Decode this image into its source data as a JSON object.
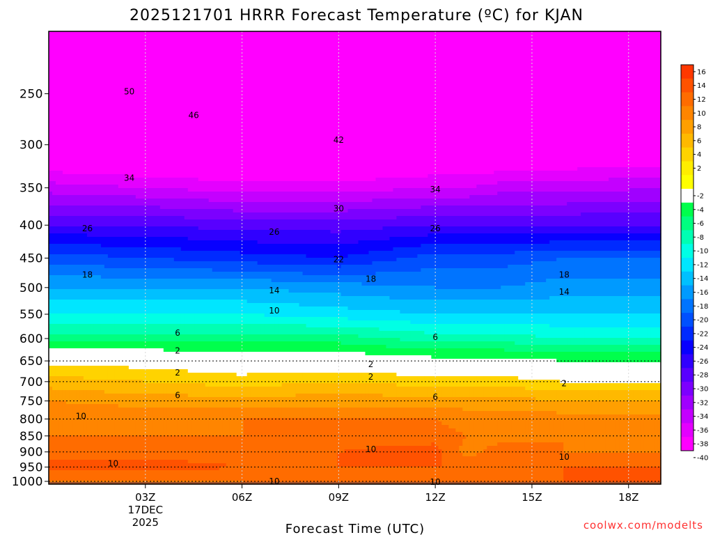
{
  "chart_data": {
    "type": "heatmap",
    "title": "2025121701 HRRR Forecast Temperature (ºC) for KJAN",
    "xlabel": "Forecast Time (UTC)",
    "ylabel": "",
    "x_ticks": [
      {
        "hour": 3,
        "label": "03Z"
      },
      {
        "hour": 6,
        "label": "06Z"
      },
      {
        "hour": 9,
        "label": "09Z"
      },
      {
        "hour": 12,
        "label": "12Z"
      },
      {
        "hour": 15,
        "label": "15Z"
      },
      {
        "hour": 18,
        "label": "18Z"
      }
    ],
    "x_subtitle": [
      "17DEC",
      "2025"
    ],
    "xlim": [
      0,
      19
    ],
    "y_ticks": [
      250,
      300,
      350,
      400,
      450,
      500,
      550,
      600,
      650,
      700,
      750,
      800,
      850,
      900,
      950,
      1000
    ],
    "ylim_pressure_hpa": [
      200,
      1010
    ],
    "y_scale": "log",
    "y_reversed": true,
    "surface_pressure_hpa": 1002,
    "times": [
      0,
      3,
      6,
      9,
      12,
      13,
      14,
      16,
      19
    ],
    "levels": [
      1000,
      950,
      900,
      850,
      800,
      750,
      700,
      650,
      600,
      550,
      500,
      450,
      400,
      350,
      300,
      250,
      200
    ],
    "temperature_profiles": [
      {
        "hour": 0,
        "temps": [
          10,
          13,
          11,
          10,
          10,
          8,
          5,
          1,
          -5,
          -10,
          -14,
          -19,
          -26,
          -33,
          -41,
          -50,
          -55
        ]
      },
      {
        "hour": 3,
        "temps": [
          10,
          13,
          11,
          10,
          10,
          7,
          4,
          1,
          -5,
          -10,
          -14,
          -20,
          -26,
          -34,
          -42,
          -50,
          -55
        ]
      },
      {
        "hour": 6,
        "temps": [
          10,
          12,
          11,
          10,
          10,
          7,
          3,
          0,
          -5,
          -10,
          -14,
          -21,
          -27,
          -35,
          -42,
          -49,
          -55
        ]
      },
      {
        "hour": 9,
        "temps": [
          11,
          12,
          12,
          11,
          10,
          7,
          4,
          0,
          -5,
          -11,
          -15,
          -22,
          -27,
          -35,
          -42,
          -48,
          -54
        ]
      },
      {
        "hour": 12,
        "temps": [
          11,
          12,
          13,
          11,
          10,
          7,
          3,
          -1,
          -7,
          -12,
          -16,
          -19,
          -26,
          -34,
          -41,
          -48,
          -54
        ]
      },
      {
        "hour": 13,
        "temps": [
          11,
          12,
          9,
          10,
          9,
          7,
          3,
          -1,
          -7,
          -12,
          -16,
          -19,
          -26,
          -34,
          -41,
          -49,
          -54
        ]
      },
      {
        "hour": 14,
        "temps": [
          12,
          12,
          11,
          9,
          9,
          7,
          3,
          -1,
          -7,
          -12,
          -16,
          -19,
          -26,
          -33,
          -41,
          -47,
          -54
        ]
      },
      {
        "hour": 16,
        "temps": [
          12,
          12,
          10,
          10,
          9,
          6,
          2,
          -2,
          -8,
          -12,
          -15,
          -18,
          -26,
          -33,
          -40,
          -46,
          -53
        ]
      },
      {
        "hour": 19,
        "temps": [
          13,
          12,
          10,
          10,
          9,
          6,
          2,
          -2,
          -8,
          -12,
          -15,
          -18,
          -26,
          -32,
          -40,
          -46,
          -53
        ]
      }
    ],
    "contour_labels": [
      {
        "value": "50",
        "hour": 2.5,
        "p": 248
      },
      {
        "value": "46",
        "hour": 4.5,
        "p": 270
      },
      {
        "value": "42",
        "hour": 9.0,
        "p": 295
      },
      {
        "value": "34",
        "hour": 2.5,
        "p": 338
      },
      {
        "value": "34",
        "hour": 12.0,
        "p": 352
      },
      {
        "value": "30",
        "hour": 9.0,
        "p": 377
      },
      {
        "value": "26",
        "hour": 1.2,
        "p": 405
      },
      {
        "value": "26",
        "hour": 7.0,
        "p": 410
      },
      {
        "value": "26",
        "hour": 12.0,
        "p": 405
      },
      {
        "value": "22",
        "hour": 9.0,
        "p": 452
      },
      {
        "value": "18",
        "hour": 1.2,
        "p": 478
      },
      {
        "value": "18",
        "hour": 10.0,
        "p": 485
      },
      {
        "value": "18",
        "hour": 16.0,
        "p": 478
      },
      {
        "value": "14",
        "hour": 7.0,
        "p": 505
      },
      {
        "value": "14",
        "hour": 16.0,
        "p": 508
      },
      {
        "value": "10",
        "hour": 7.0,
        "p": 543
      },
      {
        "value": "6",
        "hour": 4.0,
        "p": 588
      },
      {
        "value": "6",
        "hour": 12.0,
        "p": 597
      },
      {
        "value": "2",
        "hour": 4.0,
        "p": 627
      },
      {
        "value": "2",
        "hour": 10.0,
        "p": 658
      },
      {
        "value": "2",
        "hour": 4.0,
        "p": 678
      },
      {
        "value": "2",
        "hour": 10.0,
        "p": 688
      },
      {
        "value": "2",
        "hour": 16.0,
        "p": 705
      },
      {
        "value": "6",
        "hour": 4.0,
        "p": 735
      },
      {
        "value": "6",
        "hour": 12.0,
        "p": 740
      },
      {
        "value": "10",
        "hour": 1.0,
        "p": 792
      },
      {
        "value": "10",
        "hour": 10.0,
        "p": 892
      },
      {
        "value": "10",
        "hour": 2.0,
        "p": 938
      },
      {
        "value": "10",
        "hour": 16.0,
        "p": 916
      },
      {
        "value": "10",
        "hour": 7.0,
        "p": 1000
      },
      {
        "value": "10",
        "hour": 12.0,
        "p": 1002
      }
    ],
    "colorbar_ticks": [
      "16",
      "14",
      "12",
      "10",
      "8",
      "6",
      "4",
      "2",
      "-2",
      "-4",
      "-6",
      "-8",
      "-10",
      "-12",
      "-14",
      "-16",
      "-18",
      "-20",
      "-22",
      "-24",
      "-26",
      "-28",
      "-30",
      "-32",
      "-34",
      "-36",
      "-38",
      "-40"
    ],
    "colorbar_colors": [
      "#ff3800",
      "#ff5200",
      "#ff6c00",
      "#ff8500",
      "#ff9f00",
      "#ffb900",
      "#ffd300",
      "#ffed00",
      "#ffff00",
      "#ffffff",
      "#00ff4c",
      "#00ff80",
      "#00ffb3",
      "#00ffe5",
      "#00e6ff",
      "#00c0ff",
      "#009aff",
      "#0074ff",
      "#0050ff",
      "#002aff",
      "#0800ff",
      "#3000ff",
      "#5800ff",
      "#7c00ff",
      "#a000ff",
      "#c400ff",
      "#e400ff",
      "#ff00ff"
    ],
    "surface_color": "#a0522d"
  },
  "credit": "coolwx.com/modelts"
}
